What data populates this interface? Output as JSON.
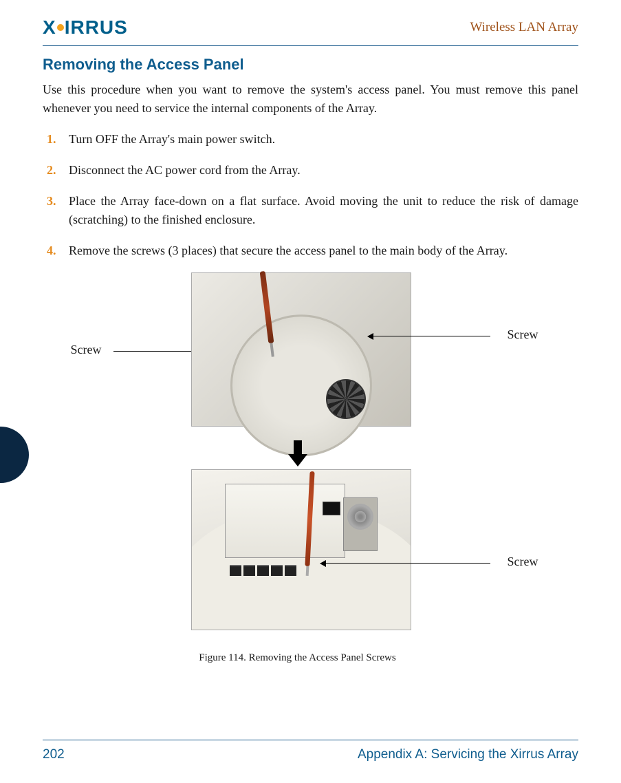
{
  "header": {
    "brand_prefix": "X",
    "brand_mid": "I",
    "brand_suffix": "RRUS",
    "right": "Wireless LAN Array"
  },
  "colors": {
    "brand_blue": "#005f8b",
    "brand_orange": "#f4a21b",
    "rule": "#1a5a8c",
    "title": "#0f5d8e",
    "header_right": "#a0531b",
    "body_text": "#1a1a1a",
    "step_num": "#e58b1f",
    "tab": "#0b2742"
  },
  "section": {
    "title": "Removing the Access Panel",
    "intro": "Use this procedure when you want to remove the system's access panel. You must remove this panel whenever you need to service the internal components of the Array."
  },
  "steps": [
    {
      "n": "1.",
      "text": "Turn OFF the Array's main power switch."
    },
    {
      "n": "2.",
      "text": "Disconnect the AC power cord from the Array."
    },
    {
      "n": "3.",
      "text": "Place the Array face-down on a flat surface. Avoid moving the unit to reduce the risk of damage (scratching) to the finished enclosure."
    },
    {
      "n": "4.",
      "text": "Remove the screws (3 places) that secure the access panel to the main body of the Array."
    }
  ],
  "callouts": {
    "screw_left": "Screw",
    "screw_right_top": "Screw",
    "screw_right_bottom": "Screw"
  },
  "figure_caption": "Figure 114. Removing the Access Panel Screws",
  "footer": {
    "page": "202",
    "appendix": "Appendix A: Servicing the Xirrus Array"
  }
}
